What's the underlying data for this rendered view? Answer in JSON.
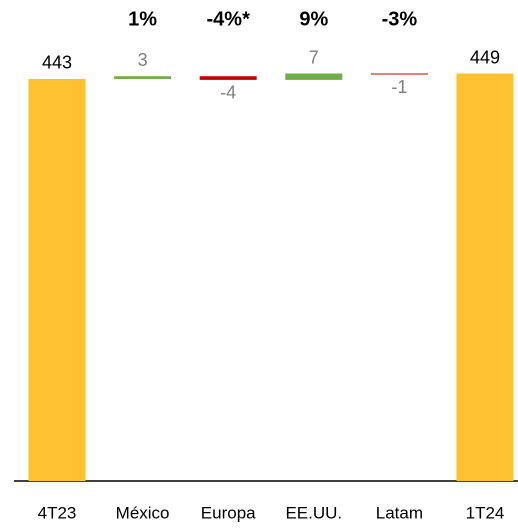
{
  "chart_data": {
    "type": "waterfall",
    "categories": [
      "4T23",
      "México",
      "Europa",
      "EE.UU.",
      "Latam",
      "1T24"
    ],
    "values": [
      443,
      3,
      -4,
      7,
      -1,
      449
    ],
    "measure": [
      "total",
      "relative",
      "relative",
      "relative",
      "relative",
      "total"
    ],
    "annotations": [
      null,
      "1%",
      "-4%*",
      "9%",
      "-3%",
      null
    ],
    "total_color": "#FFC12F",
    "increase_color": "#70AD47",
    "decrease_color": "#C00000",
    "ylim": [
      0,
      530
    ]
  }
}
